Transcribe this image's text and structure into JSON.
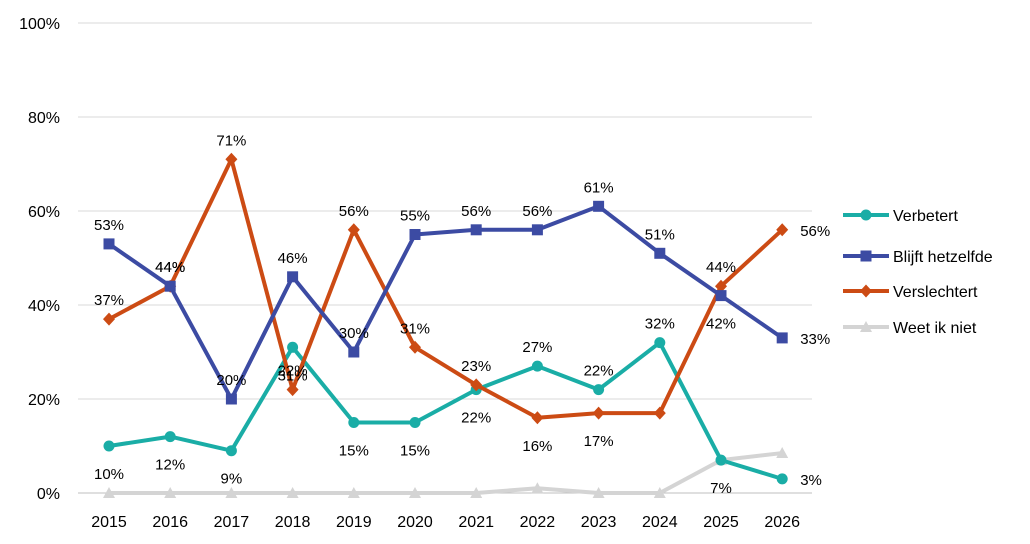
{
  "chart_data": {
    "type": "line",
    "title": "",
    "xlabel": "",
    "ylabel": "",
    "x": [
      "2015",
      "2016",
      "2017",
      "2018",
      "2019",
      "2020",
      "2021",
      "2022",
      "2023",
      "2024",
      "2025",
      "2026"
    ],
    "ylim": [
      0,
      100
    ],
    "yticks": [
      "0%",
      "20%",
      "40%",
      "60%",
      "80%",
      "100%"
    ],
    "grid": true,
    "legend_position": "right",
    "series": [
      {
        "name": "Verbetert",
        "color": "#1AADA6",
        "marker": "circle",
        "values": [
          10,
          12,
          9,
          31,
          15,
          15,
          22,
          27,
          22,
          32,
          7,
          3
        ],
        "labels": [
          "10%",
          "12%",
          "9%",
          "31%",
          "15%",
          "15%",
          "22%",
          "27%",
          "22%",
          "32%",
          "7%",
          "3%"
        ]
      },
      {
        "name": "Blijft hetzelfde",
        "color": "#3C4BA3",
        "marker": "square",
        "values": [
          53,
          44,
          20,
          46,
          30,
          55,
          56,
          56,
          61,
          51,
          42,
          33
        ],
        "labels": [
          "53%",
          "44%",
          "20%",
          "46%",
          "30%",
          "55%",
          "56%",
          "56%",
          "61%",
          "51%",
          "42%",
          "33%"
        ]
      },
      {
        "name": "Verslechtert",
        "color": "#CC4B14",
        "marker": "diamond",
        "values": [
          37,
          44,
          71,
          22,
          56,
          31,
          23,
          16,
          17,
          17,
          44,
          56
        ],
        "labels": [
          "37%",
          "44%",
          "71%",
          "22%",
          "56%",
          "31%",
          "23%",
          "16%",
          "17%",
          "",
          "44%",
          "56%"
        ]
      },
      {
        "name": "Weet ik niet",
        "color": "#D4D4D4",
        "marker": "triangle",
        "values": [
          0,
          0,
          0,
          0,
          0,
          0,
          0,
          1,
          0,
          0,
          7,
          8.5
        ],
        "labels": []
      }
    ]
  }
}
